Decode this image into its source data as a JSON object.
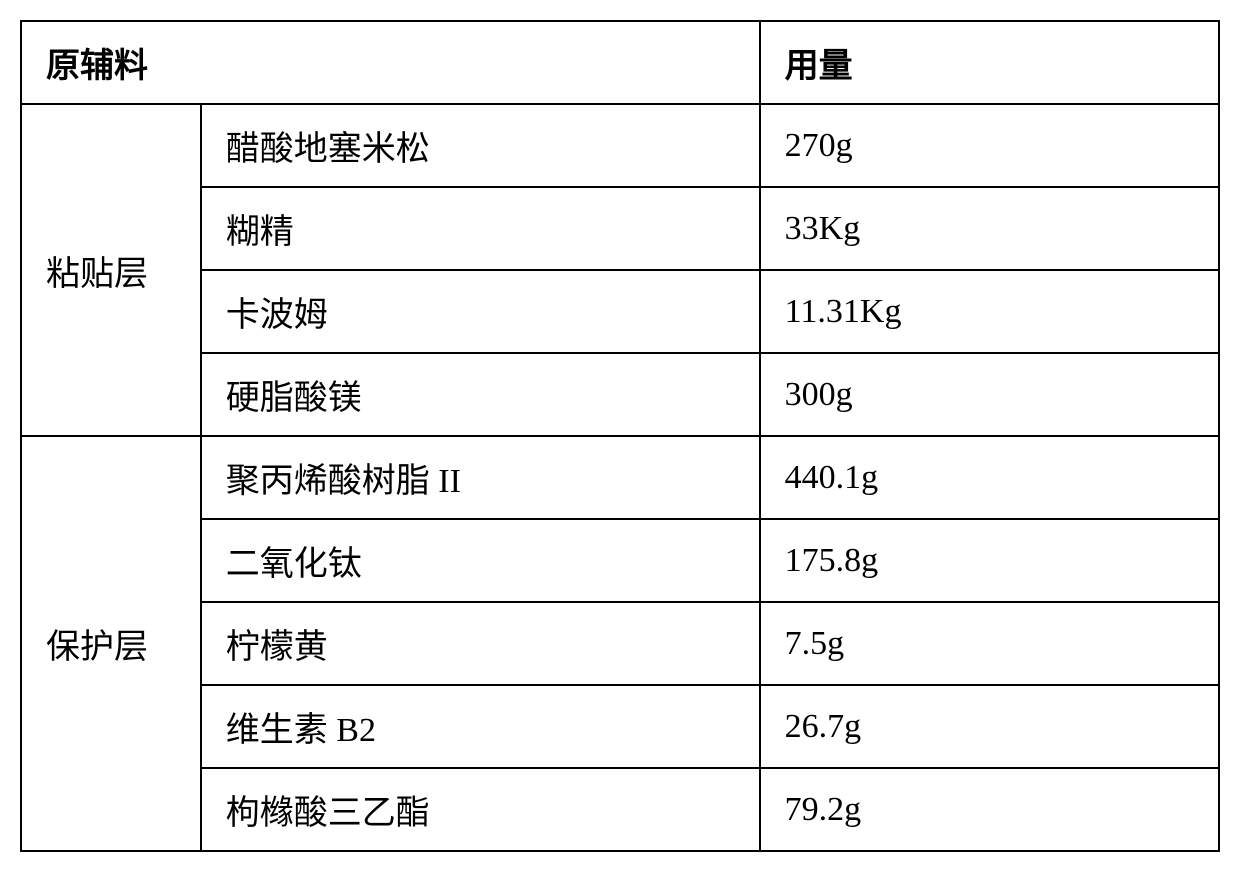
{
  "headers": {
    "materials": "原辅料",
    "amount": "用量"
  },
  "groups": [
    {
      "name": "粘贴层",
      "rows": [
        {
          "material": "醋酸地塞米松",
          "amount": "270g"
        },
        {
          "material": "糊精",
          "amount": "33Kg"
        },
        {
          "material": "卡波姆",
          "amount": "11.31Kg"
        },
        {
          "material": "硬脂酸镁",
          "amount": "300g"
        }
      ]
    },
    {
      "name": "保护层",
      "rows": [
        {
          "material": "聚丙烯酸树脂 II",
          "amount": "440.1g"
        },
        {
          "material": "二氧化钛",
          "amount": "175.8g"
        },
        {
          "material": "柠檬黄",
          "amount": "7.5g"
        },
        {
          "material": "维生素  B2",
          "amount": "26.7g"
        },
        {
          "material": "枸橼酸三乙酯",
          "amount": "79.2g"
        }
      ]
    }
  ],
  "styling": {
    "border_color": "#000000",
    "background_color": "#ffffff",
    "font_family": "SimSun",
    "font_size": 34,
    "border_width": 2
  }
}
